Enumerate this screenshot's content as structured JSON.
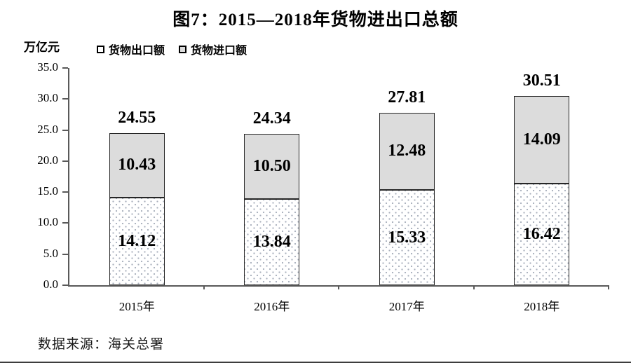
{
  "title": "图7：2015—2018年货物进出口总额",
  "unit_label": "万亿元",
  "legend": {
    "export_label": "货物出口额",
    "import_label": "货物进口额"
  },
  "source": "数据来源：海关总署",
  "chart_data": {
    "type": "bar",
    "stacked": true,
    "title": "图7：2015—2018年货物进出口总额",
    "ylabel": "万亿元",
    "categories": [
      "2015年",
      "2016年",
      "2017年",
      "2018年"
    ],
    "series": [
      {
        "name": "货物出口额",
        "style": "dotted",
        "values": [
          14.12,
          13.84,
          15.33,
          16.42
        ],
        "labels": [
          "14.12",
          "13.84",
          "15.33",
          "16.42"
        ]
      },
      {
        "name": "货物进口额",
        "style": "gray",
        "values": [
          10.43,
          10.5,
          12.48,
          14.09
        ],
        "labels": [
          "10.43",
          "10.50",
          "12.48",
          "14.09"
        ]
      }
    ],
    "totals": [
      24.55,
      24.34,
      27.81,
      30.51
    ],
    "total_labels": [
      "24.55",
      "24.34",
      "27.81",
      "30.51"
    ],
    "ylim": [
      0,
      35
    ],
    "ytick_step": 5,
    "ytick_labels": [
      "0.0",
      "5.0",
      "10.0",
      "15.0",
      "20.0",
      "25.0",
      "30.0",
      "35.0"
    ],
    "legend_position": "top-left",
    "grid": false,
    "colors": {
      "import_fill": "#dcdcdc",
      "export_fill": "#ffffff",
      "export_dot": "#a9b0bc",
      "bar_border": "#262626",
      "axis": "#595959",
      "text": "#000000"
    }
  }
}
